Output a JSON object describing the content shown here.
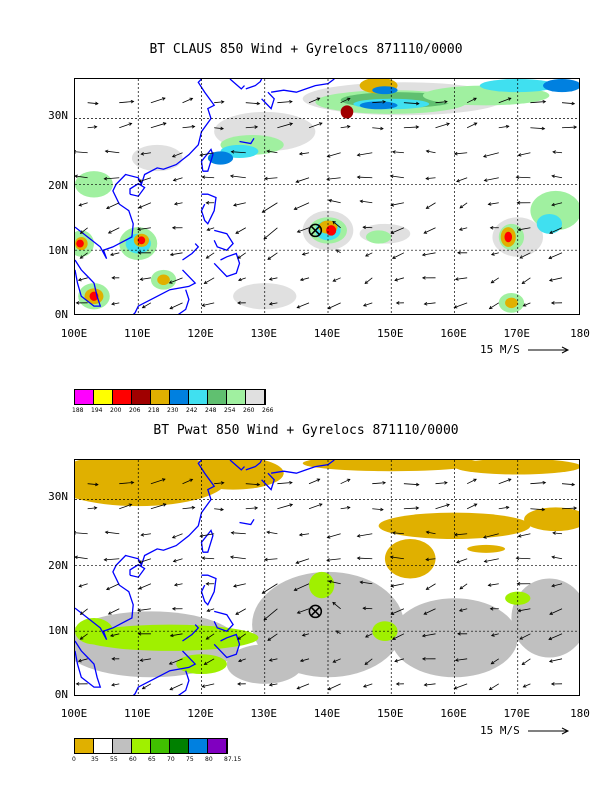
{
  "panels": [
    {
      "title": "BT CLAUS 850 Wind + Gyrelocs 871110/0000",
      "field": "claus",
      "yticks": [
        "30N",
        "20N",
        "10N",
        "0N"
      ],
      "xticks": [
        "100E",
        "110E",
        "120E",
        "130E",
        "140E",
        "150E",
        "160E",
        "170E",
        "180"
      ],
      "scale_label": "15 M/S",
      "colorbar": {
        "colors": [
          "#ff00ff",
          "#ffff00",
          "#ff0000",
          "#a00000",
          "#e0b000",
          "#0080e0",
          "#40e0f0",
          "#60c070",
          "#a0f0a0",
          "#e0e0e0"
        ],
        "labels": [
          "188",
          "194",
          "200",
          "206",
          "218",
          "230",
          "242",
          "248",
          "254",
          "260",
          "266"
        ]
      }
    },
    {
      "title": "BT Pwat 850 Wind + Gyrelocs 871110/0000",
      "field": "pwat",
      "yticks": [
        "30N",
        "20N",
        "10N",
        "0N"
      ],
      "xticks": [
        "100E",
        "110E",
        "120E",
        "130E",
        "140E",
        "150E",
        "160E",
        "170E",
        "180"
      ],
      "scale_label": "15 M/S",
      "colorbar": {
        "colors": [
          "#e0b000",
          "#ffffff",
          "#c0c0c0",
          "#a0f000",
          "#40c000",
          "#008000",
          "#0080e0",
          "#8000c0"
        ],
        "labels": [
          "0",
          "35",
          "55",
          "60",
          "65",
          "70",
          "75",
          "80",
          "87.15"
        ]
      }
    }
  ],
  "map": {
    "lon_range": [
      100,
      180
    ],
    "lat_range": [
      0,
      36
    ],
    "gyre_location": {
      "lon": 138,
      "lat": 13
    },
    "coast_color": "#0000ff",
    "gyre_icon": "circled-x-icon",
    "arrow_icon": "wind-vector-arrow-icon"
  }
}
